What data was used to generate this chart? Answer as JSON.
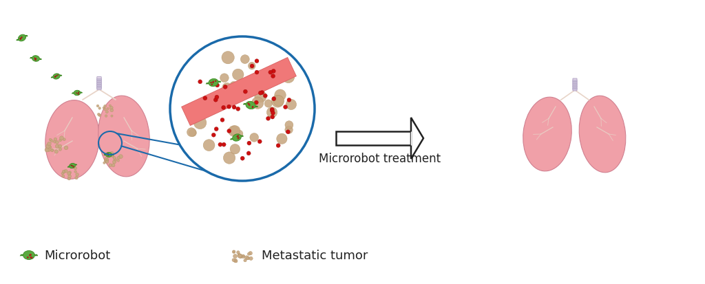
{
  "background_color": "#ffffff",
  "lung_color": "#f0a0a8",
  "lung_stroke": "#d08090",
  "tumor_color": "#c8a882",
  "tumor_dark": "#b09060",
  "microrobot_body": "#5aaa40",
  "microrobot_dots": "#cc2222",
  "drug_dot_color": "#cc1111",
  "blood_vessel_color": "#f07878",
  "zoom_circle_color": "#1a6aaa",
  "arrow_color": "#222222",
  "text_color": "#222222",
  "label_microrobot": "Microrobot",
  "label_tumor": "Metastatic tumor",
  "label_treatment": "Microrobot treatment",
  "font_size_labels": 13,
  "font_size_arrow_label": 12
}
